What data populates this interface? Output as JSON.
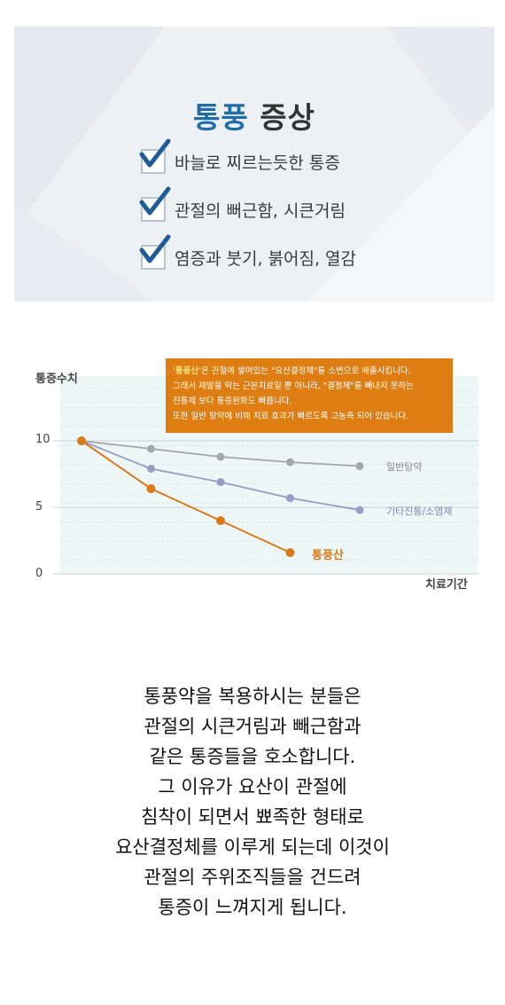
{
  "panel": {
    "title_highlight": "통풍",
    "title_rest": " 증상",
    "items": [
      {
        "label": "바늘로 찌르는듯한 통증"
      },
      {
        "label": "관절의 뻐근함, 시큰거림"
      },
      {
        "label": "염증과 붓기, 붉어짐, 열감"
      }
    ],
    "check_color": "#1d5c98"
  },
  "chart_data": {
    "type": "line",
    "ylabel": "통증수치",
    "xlabel": "치료기간",
    "y_ticks": [
      "10",
      "5",
      "0"
    ],
    "ylim": [
      0,
      10
    ],
    "x": [
      0,
      1,
      2,
      3,
      4
    ],
    "series": [
      {
        "name": "일반탕약",
        "values": [
          10,
          9.4,
          8.8,
          8.4,
          8.1
        ],
        "color": "#a6a6a6"
      },
      {
        "name": "기타진통/소염제",
        "values": [
          10,
          7.9,
          6.9,
          5.7,
          4.8
        ],
        "color": "#9a9bc2"
      },
      {
        "name": "통풍산",
        "values": [
          10,
          6.4,
          4.0,
          1.6,
          null
        ],
        "color": "#d9791a"
      }
    ],
    "grid": true,
    "annotation": {
      "highlight": "'통풍산'",
      "lines": [
        "은 관절에 쌓여있는 \"요산결정체\"를 소변으로 배출시킵니다.",
        "그래서 재발을 막는 근본치료일 뿐 아니라, \"결정체\"를 빼내지 못하는",
        "진통제 보다 통증완화도 빠릅니다.",
        "또한 일반 탕약에 비해 치료 효과가 빠르도록 고농축 되어 있습니다."
      ],
      "color": "#de7e12"
    }
  },
  "paragraph": {
    "lines": [
      "통풍약을 복용하시는 분들은",
      "관절의 시큰거림과 빼근함과",
      "같은 통증들을 호소합니다.",
      "그 이유가 요산이 관절에",
      "침착이 되면서 뾰족한 형태로",
      "요산결정체를 이루게 되는데 이것이",
      "관절의 주위조직들을 건드려",
      "통증이 느껴지게 됩니다."
    ]
  }
}
